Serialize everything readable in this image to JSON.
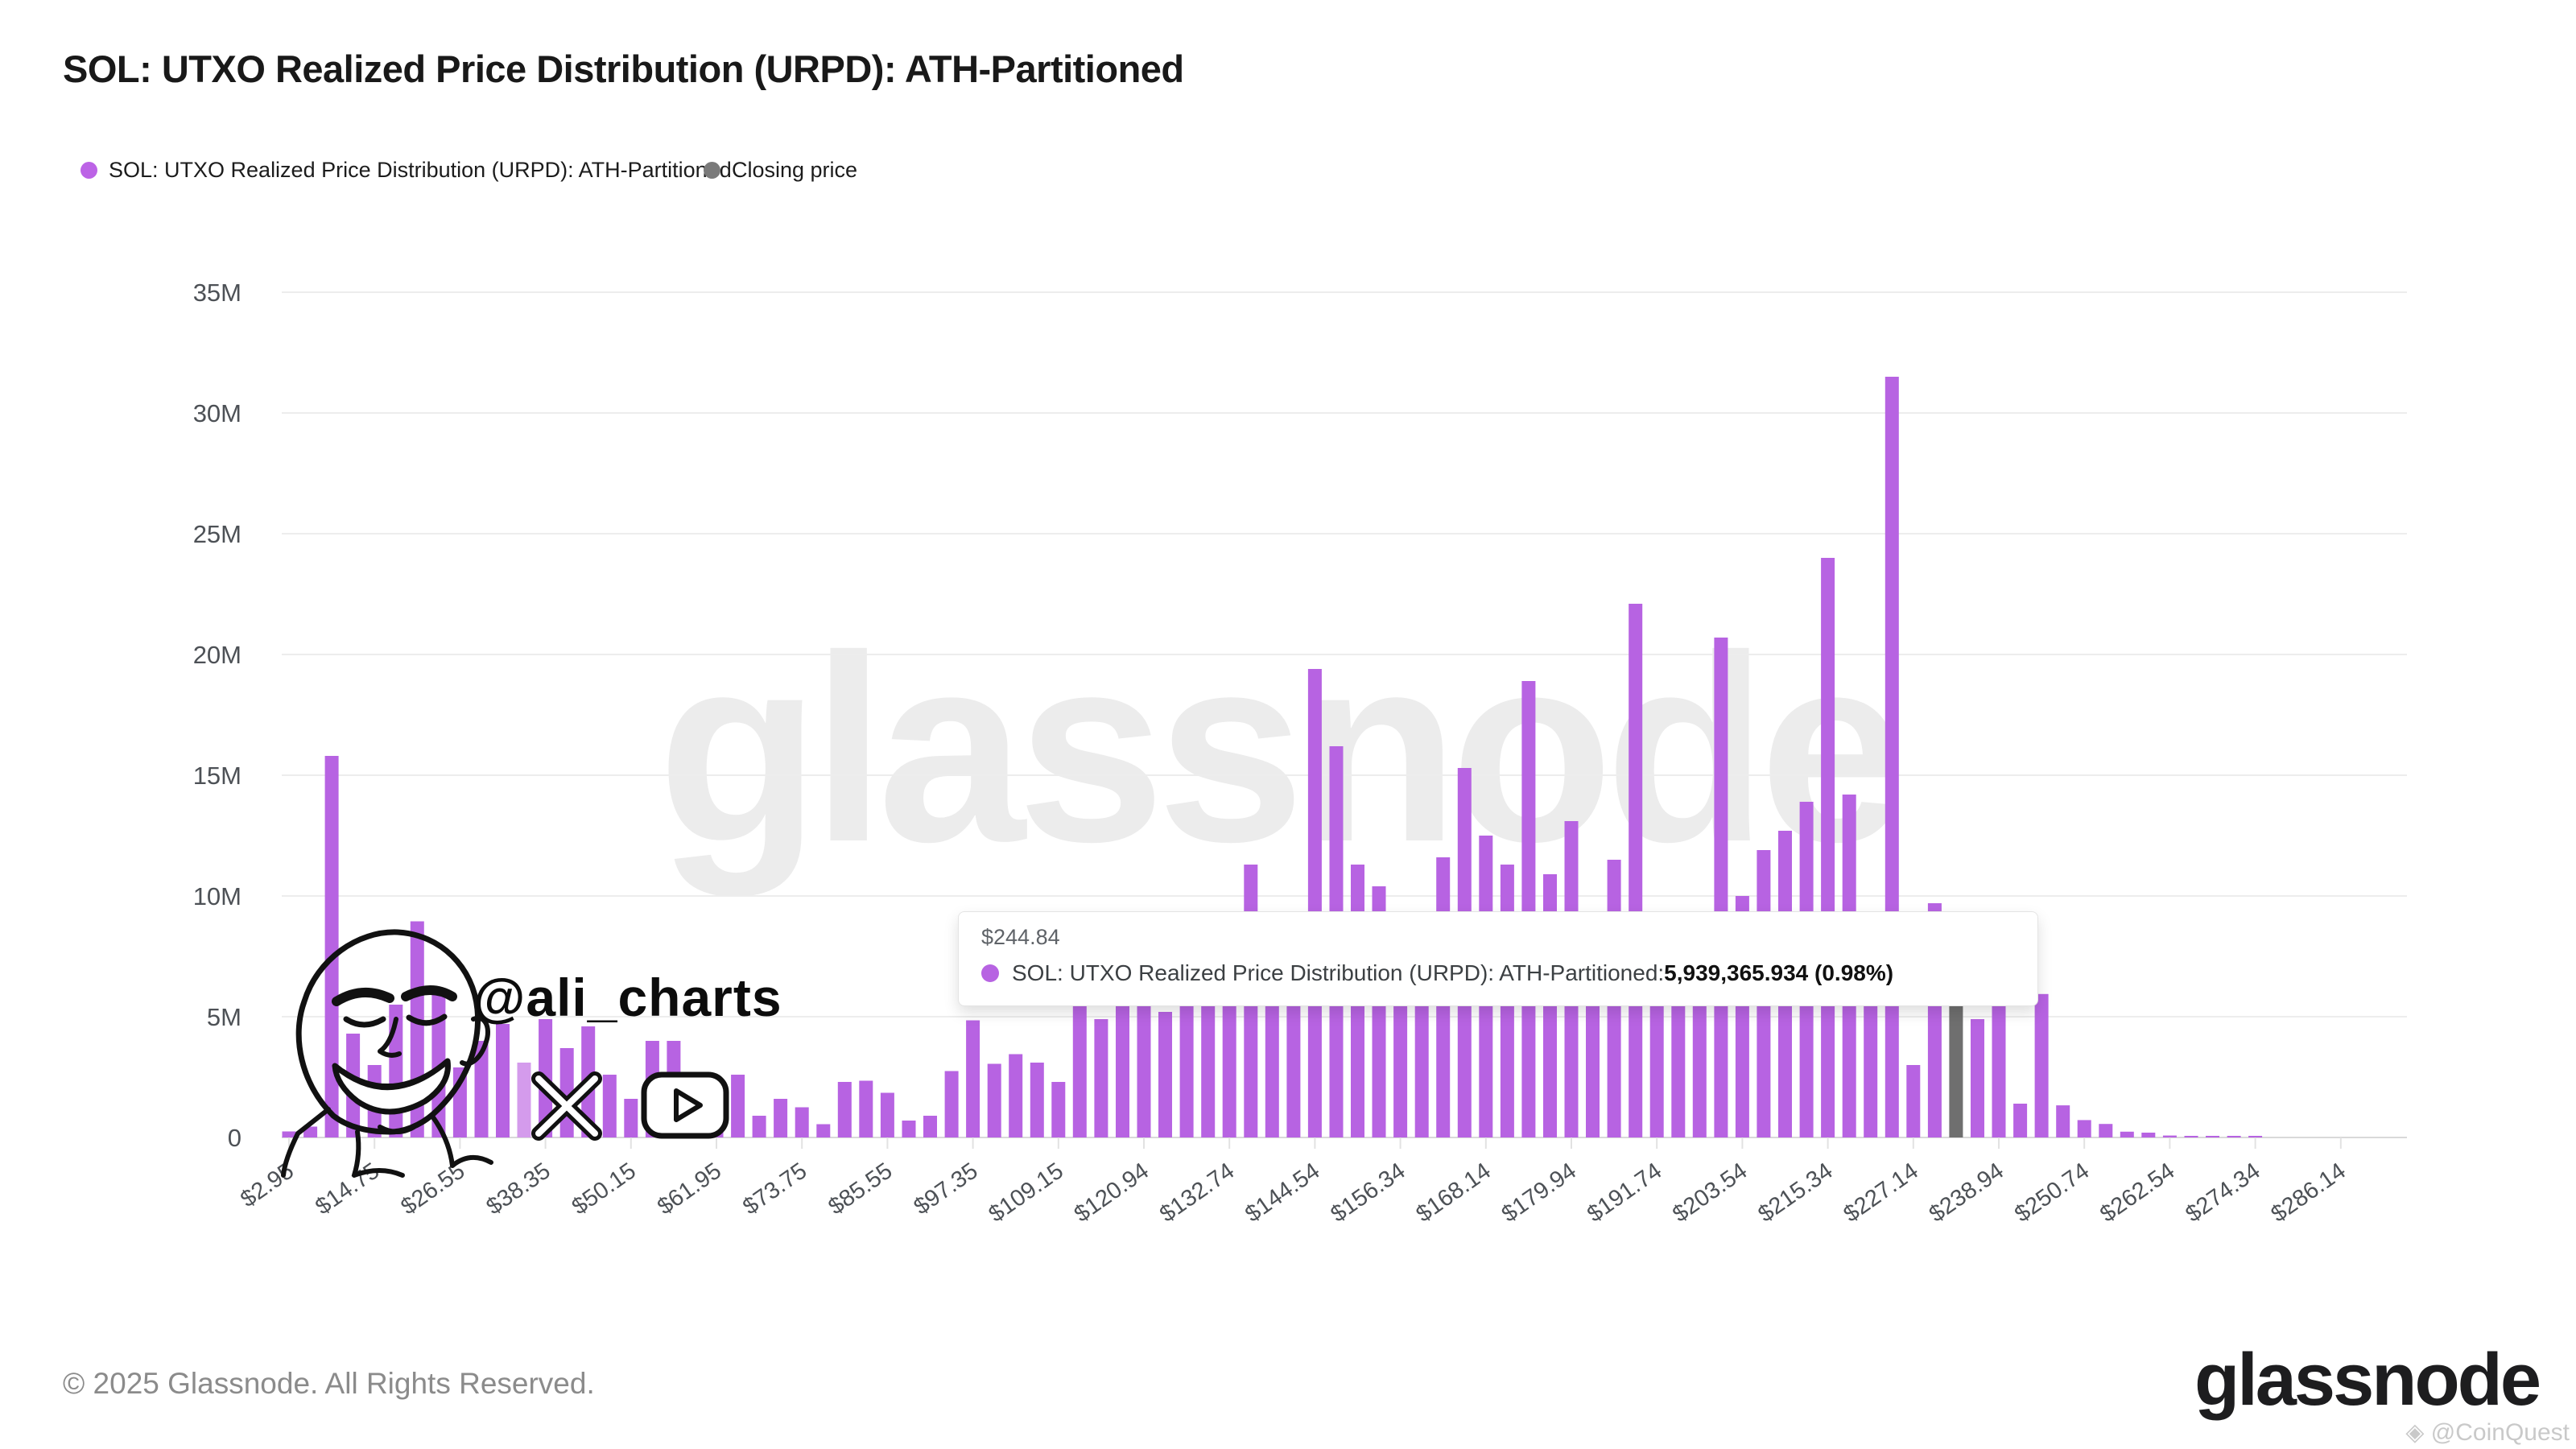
{
  "title": "SOL: UTXO Realized Price Distribution (URPD): ATH-Partitioned",
  "legend": {
    "items": [
      {
        "label": "SOL: UTXO Realized Price Distribution (URPD): ATH-Partitioned",
        "color": "#bc63e6"
      },
      {
        "label": "Closing price",
        "color": "#7a7a7a"
      }
    ]
  },
  "colors": {
    "bar": "#b763e2",
    "bar_light": "#d49bec",
    "bar_closing": "#6f6f6f",
    "grid": "#ededed",
    "axis_line": "#d9d9d9",
    "tick_text": "#4d5156",
    "watermark": "#ececec"
  },
  "chart_data": {
    "type": "bar",
    "title": "SOL: UTXO Realized Price Distribution (URPD): ATH-Partitioned",
    "xlabel": "",
    "ylabel": "",
    "ylim_millions": [
      0,
      35
    ],
    "grid": true,
    "legend_position": "top-left",
    "y_tick_labels": [
      "35M",
      "30M",
      "25M",
      "20M",
      "15M",
      "10M",
      "5M",
      "0"
    ],
    "x_tick_labels": [
      "$2.95",
      "$14.75",
      "$26.55",
      "$38.35",
      "$50.15",
      "$61.95",
      "$73.75",
      "$85.55",
      "$97.35",
      "$109.15",
      "$120.94",
      "$132.74",
      "$144.54",
      "$156.34",
      "$168.14",
      "$179.94",
      "$191.74",
      "$203.54",
      "$215.34",
      "$227.14",
      "$238.94",
      "$250.74",
      "$262.54",
      "$274.34",
      "$286.14"
    ],
    "bucket_price_start": 2.95,
    "bucket_price_step": 2.9499,
    "values_millions": [
      0.25,
      0.45,
      15.8,
      4.3,
      3.0,
      5.5,
      8.95,
      6.0,
      2.9,
      4.0,
      4.7,
      3.1,
      4.9,
      3.7,
      4.6,
      2.6,
      1.6,
      4.0,
      4.0,
      1.7,
      1.6,
      2.6,
      0.9,
      1.6,
      1.25,
      0.55,
      2.3,
      2.35,
      1.85,
      0.7,
      0.9,
      2.75,
      4.85,
      3.05,
      3.45,
      3.1,
      2.3,
      5.6,
      4.9,
      5.5,
      6.2,
      5.2,
      6.6,
      7.2,
      7.8,
      11.3,
      8.2,
      8.8,
      19.4,
      16.2,
      11.3,
      10.4,
      7.2,
      8.2,
      11.6,
      15.3,
      12.5,
      11.3,
      18.9,
      10.9,
      13.1,
      8.5,
      11.5,
      22.1,
      8.6,
      9.2,
      8.2,
      20.7,
      10.0,
      11.9,
      12.7,
      13.9,
      24.0,
      14.2,
      9.0,
      31.5,
      3.0,
      9.7,
      6.5,
      4.9,
      5.6,
      1.4,
      5.939,
      1.33,
      0.72,
      0.56,
      0.24,
      0.2,
      0.08,
      0.06,
      0.05,
      0.05,
      0.03
    ],
    "light_bar_index": 11,
    "closing_price_bar_index": 78,
    "hovered_bar_index": 82,
    "hovered_bar_price": "$244.84",
    "hovered_bar_value": "5,939,365.934",
    "hovered_bar_pct": "0.98%"
  },
  "tooltip": {
    "price": "$244.84",
    "series_prefix": "SOL: UTXO Realized Price Distribution (URPD): ATH-Partitioned: ",
    "value_bold": "5,939,365.934 (0.98%)"
  },
  "annotations": {
    "handle": "@ali_charts",
    "watermark": "glassnode"
  },
  "footer": {
    "copyright": "© 2025 Glassnode. All Rights Reserved.",
    "brand": "glassnode",
    "badge": "◈ @CoinQuest"
  }
}
